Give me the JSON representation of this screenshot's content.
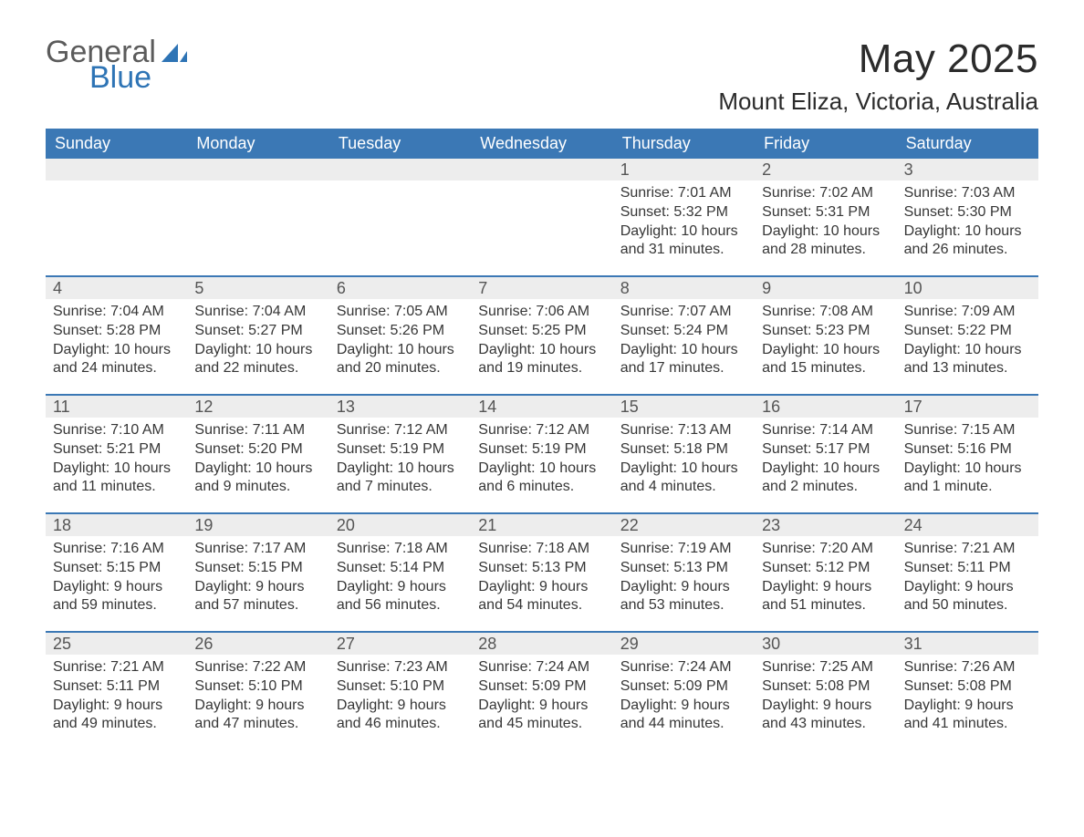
{
  "brand": {
    "word1": "General",
    "word2": "Blue"
  },
  "colors": {
    "brand_gray": "#5b5b5b",
    "brand_blue": "#2e74b5",
    "header_bg": "#3b78b5",
    "header_fg": "#ffffff",
    "daynum_bg": "#ededed",
    "daynum_fg": "#555555",
    "body_text": "#363636",
    "page_bg": "#ffffff",
    "week_border": "#3b78b5"
  },
  "typography": {
    "title_fontsize": 44,
    "subtitle_fontsize": 26,
    "dayheader_fontsize": 18,
    "daynum_fontsize": 18,
    "body_fontsize": 16
  },
  "title": "May 2025",
  "location": "Mount Eliza, Victoria, Australia",
  "day_headers": [
    "Sunday",
    "Monday",
    "Tuesday",
    "Wednesday",
    "Thursday",
    "Friday",
    "Saturday"
  ],
  "labels": {
    "sunrise": "Sunrise: ",
    "sunset": "Sunset: ",
    "daylight": "Daylight: "
  },
  "weeks": [
    [
      {
        "empty": true
      },
      {
        "empty": true
      },
      {
        "empty": true
      },
      {
        "empty": true
      },
      {
        "n": "1",
        "sunrise": "7:01 AM",
        "sunset": "5:32 PM",
        "daylight": "10 hours and 31 minutes."
      },
      {
        "n": "2",
        "sunrise": "7:02 AM",
        "sunset": "5:31 PM",
        "daylight": "10 hours and 28 minutes."
      },
      {
        "n": "3",
        "sunrise": "7:03 AM",
        "sunset": "5:30 PM",
        "daylight": "10 hours and 26 minutes."
      }
    ],
    [
      {
        "n": "4",
        "sunrise": "7:04 AM",
        "sunset": "5:28 PM",
        "daylight": "10 hours and 24 minutes."
      },
      {
        "n": "5",
        "sunrise": "7:04 AM",
        "sunset": "5:27 PM",
        "daylight": "10 hours and 22 minutes."
      },
      {
        "n": "6",
        "sunrise": "7:05 AM",
        "sunset": "5:26 PM",
        "daylight": "10 hours and 20 minutes."
      },
      {
        "n": "7",
        "sunrise": "7:06 AM",
        "sunset": "5:25 PM",
        "daylight": "10 hours and 19 minutes."
      },
      {
        "n": "8",
        "sunrise": "7:07 AM",
        "sunset": "5:24 PM",
        "daylight": "10 hours and 17 minutes."
      },
      {
        "n": "9",
        "sunrise": "7:08 AM",
        "sunset": "5:23 PM",
        "daylight": "10 hours and 15 minutes."
      },
      {
        "n": "10",
        "sunrise": "7:09 AM",
        "sunset": "5:22 PM",
        "daylight": "10 hours and 13 minutes."
      }
    ],
    [
      {
        "n": "11",
        "sunrise": "7:10 AM",
        "sunset": "5:21 PM",
        "daylight": "10 hours and 11 minutes."
      },
      {
        "n": "12",
        "sunrise": "7:11 AM",
        "sunset": "5:20 PM",
        "daylight": "10 hours and 9 minutes."
      },
      {
        "n": "13",
        "sunrise": "7:12 AM",
        "sunset": "5:19 PM",
        "daylight": "10 hours and 7 minutes."
      },
      {
        "n": "14",
        "sunrise": "7:12 AM",
        "sunset": "5:19 PM",
        "daylight": "10 hours and 6 minutes."
      },
      {
        "n": "15",
        "sunrise": "7:13 AM",
        "sunset": "5:18 PM",
        "daylight": "10 hours and 4 minutes."
      },
      {
        "n": "16",
        "sunrise": "7:14 AM",
        "sunset": "5:17 PM",
        "daylight": "10 hours and 2 minutes."
      },
      {
        "n": "17",
        "sunrise": "7:15 AM",
        "sunset": "5:16 PM",
        "daylight": "10 hours and 1 minute."
      }
    ],
    [
      {
        "n": "18",
        "sunrise": "7:16 AM",
        "sunset": "5:15 PM",
        "daylight": "9 hours and 59 minutes."
      },
      {
        "n": "19",
        "sunrise": "7:17 AM",
        "sunset": "5:15 PM",
        "daylight": "9 hours and 57 minutes."
      },
      {
        "n": "20",
        "sunrise": "7:18 AM",
        "sunset": "5:14 PM",
        "daylight": "9 hours and 56 minutes."
      },
      {
        "n": "21",
        "sunrise": "7:18 AM",
        "sunset": "5:13 PM",
        "daylight": "9 hours and 54 minutes."
      },
      {
        "n": "22",
        "sunrise": "7:19 AM",
        "sunset": "5:13 PM",
        "daylight": "9 hours and 53 minutes."
      },
      {
        "n": "23",
        "sunrise": "7:20 AM",
        "sunset": "5:12 PM",
        "daylight": "9 hours and 51 minutes."
      },
      {
        "n": "24",
        "sunrise": "7:21 AM",
        "sunset": "5:11 PM",
        "daylight": "9 hours and 50 minutes."
      }
    ],
    [
      {
        "n": "25",
        "sunrise": "7:21 AM",
        "sunset": "5:11 PM",
        "daylight": "9 hours and 49 minutes."
      },
      {
        "n": "26",
        "sunrise": "7:22 AM",
        "sunset": "5:10 PM",
        "daylight": "9 hours and 47 minutes."
      },
      {
        "n": "27",
        "sunrise": "7:23 AM",
        "sunset": "5:10 PM",
        "daylight": "9 hours and 46 minutes."
      },
      {
        "n": "28",
        "sunrise": "7:24 AM",
        "sunset": "5:09 PM",
        "daylight": "9 hours and 45 minutes."
      },
      {
        "n": "29",
        "sunrise": "7:24 AM",
        "sunset": "5:09 PM",
        "daylight": "9 hours and 44 minutes."
      },
      {
        "n": "30",
        "sunrise": "7:25 AM",
        "sunset": "5:08 PM",
        "daylight": "9 hours and 43 minutes."
      },
      {
        "n": "31",
        "sunrise": "7:26 AM",
        "sunset": "5:08 PM",
        "daylight": "9 hours and 41 minutes."
      }
    ]
  ]
}
